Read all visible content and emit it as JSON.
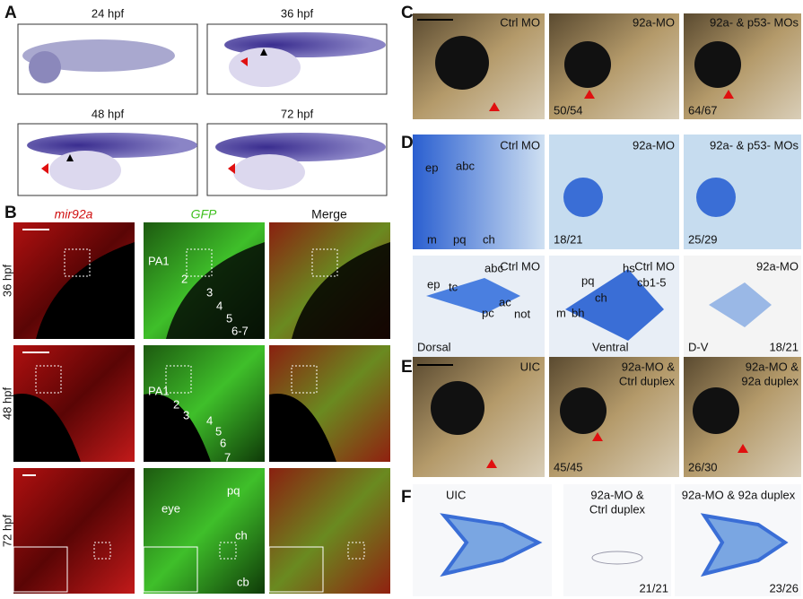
{
  "panel_a": {
    "label": "A",
    "stages": [
      "24 hpf",
      "36 hpf",
      "48 hpf",
      "72 hpf"
    ]
  },
  "panel_b": {
    "label": "B",
    "columns": [
      "mir92a",
      "GFP",
      "Merge"
    ],
    "rows": [
      "36 hpf",
      "48 hpf",
      "72 hpf"
    ],
    "annotations_36": [
      "PA1",
      "2",
      "3",
      "4",
      "5",
      "6-7"
    ],
    "annotations_48": [
      "PA1",
      "2",
      "3",
      "4",
      "5",
      "6",
      "7"
    ],
    "annotations_72": [
      "eye",
      "pq",
      "ch",
      "cb"
    ]
  },
  "panel_c": {
    "label": "C",
    "conditions": [
      "Ctrl MO",
      "92a-MO",
      "92a- & p53- MOs"
    ],
    "counts": [
      "50/54",
      "64/67"
    ]
  },
  "panel_d": {
    "label": "D",
    "top": {
      "conditions": [
        "Ctrl MO",
        "92a-MO",
        "92a- & p53- MOs"
      ],
      "labels": [
        "ep",
        "abc",
        "m",
        "pq",
        "ch"
      ],
      "counts": [
        "18/21",
        "25/29"
      ]
    },
    "dorsal": {
      "condition": "Ctrl MO",
      "view": "Dorsal",
      "labels": [
        "ep",
        "tc",
        "abc",
        "ac",
        "not",
        "pc"
      ]
    },
    "ventral": {
      "condition": "Ctrl MO",
      "view": "Ventral",
      "labels": [
        "hs",
        "pq",
        "cb1-5",
        "ch",
        "m",
        "bh"
      ]
    },
    "dv": {
      "condition": "92a-MO",
      "view": "D-V",
      "count": "18/21"
    }
  },
  "panel_e": {
    "label": "E",
    "conditions": [
      [
        "UIC"
      ],
      [
        "92a-MO &",
        "Ctrl duplex"
      ],
      [
        "92a-MO &",
        "92a duplex"
      ]
    ],
    "counts": [
      "45/45",
      "26/30"
    ]
  },
  "panel_f": {
    "label": "F",
    "conditions": [
      [
        "UIC"
      ],
      [
        "92a-MO &",
        "Ctrl duplex"
      ],
      [
        "92a-MO & 92a duplex"
      ]
    ],
    "counts": [
      "21/21",
      "23/26"
    ]
  }
}
